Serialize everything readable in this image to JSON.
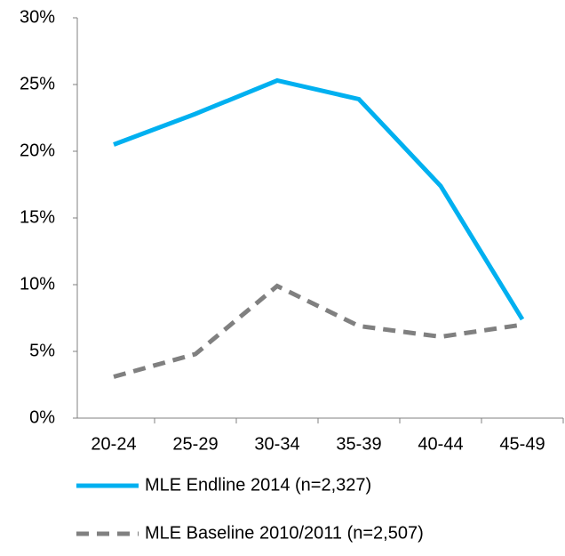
{
  "chart_data": {
    "type": "line",
    "categories": [
      "20-24",
      "25-29",
      "30-34",
      "35-39",
      "40-44",
      "45-49"
    ],
    "series": [
      {
        "name": "MLE Endline 2014 (n=2,327)",
        "color": "#00b0f0",
        "dashed": false,
        "values": [
          20.5,
          22.8,
          25.3,
          23.9,
          17.4,
          7.4
        ]
      },
      {
        "name": "MLE Baseline 2010/2011 (n=2,507)",
        "color": "#808080",
        "dashed": true,
        "values": [
          3.1,
          4.8,
          9.9,
          6.9,
          6.1,
          7.0
        ]
      }
    ],
    "ylim": [
      0,
      30
    ],
    "yticks": [
      {
        "value": 0,
        "label": "0%"
      },
      {
        "value": 5,
        "label": "5%"
      },
      {
        "value": 10,
        "label": "10%"
      },
      {
        "value": 15,
        "label": "15%"
      },
      {
        "value": 20,
        "label": "20%"
      },
      {
        "value": 25,
        "label": "25%"
      },
      {
        "value": 30,
        "label": "30%"
      }
    ],
    "legend": "bottom"
  }
}
